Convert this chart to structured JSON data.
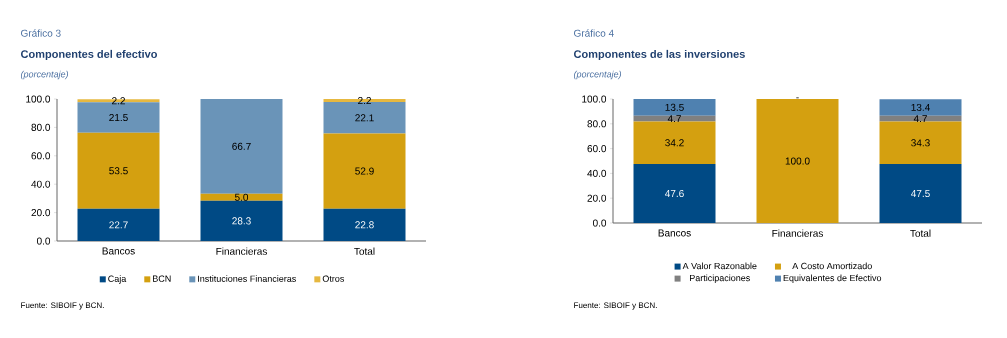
{
  "chart_data": [
    {
      "type": "bar",
      "stacked": true,
      "title": "Componentes del efectivo",
      "subtitle": "(porcentaje)",
      "annotations": [
        "Gráfico 3",
        "Fuente: SIBOIF y BCN."
      ],
      "categories": [
        "Bancos",
        "Financieras",
        "Total"
      ],
      "legend": "bottom",
      "ylim": [
        0,
        100
      ],
      "yticks": [
        {
          "value": 0,
          "label": "0.0"
        },
        {
          "value": 20,
          "label": "20.0"
        },
        {
          "value": 40,
          "label": "40.0"
        },
        {
          "value": 60,
          "label": "60.0"
        },
        {
          "value": 80,
          "label": "80.0"
        },
        {
          "value": 100,
          "label": "100.0"
        }
      ],
      "series": [
        {
          "name": "Caja",
          "color": "#004a85",
          "values": [
            22.7,
            28.3,
            22.8
          ],
          "value_labels": [
            "22.7",
            "28.3",
            "22.8"
          ]
        },
        {
          "name": "BCN",
          "color": "#d4a010",
          "values": [
            53.5,
            5.0,
            52.9
          ],
          "value_labels": [
            "53.5",
            "5.0",
            "52.9"
          ]
        },
        {
          "name": "Instituciones Financieras",
          "color": "#6a94b8",
          "values": [
            21.5,
            66.7,
            22.1
          ],
          "value_labels": [
            "21.5",
            "66.7",
            "22.1"
          ]
        },
        {
          "name": "Otros",
          "color": "#e6b840",
          "values": [
            2.2,
            0,
            2.2
          ],
          "value_labels": [
            "2.2",
            null,
            "2.2"
          ]
        }
      ]
    },
    {
      "type": "bar",
      "stacked": true,
      "title": "Componentes de las inversiones",
      "subtitle": "(porcentaje)",
      "annotations": [
        "Gráfico 4",
        "Fuente: SIBOIF y BCN."
      ],
      "categories": [
        "Bancos",
        "Financieras",
        "Total"
      ],
      "legend": "bottom",
      "ylim": [
        0,
        100
      ],
      "yticks": [
        {
          "value": 0,
          "label": "0.0"
        },
        {
          "value": 20,
          "label": "20.0"
        },
        {
          "value": 40,
          "label": "40.0"
        },
        {
          "value": 60,
          "label": "60.0"
        },
        {
          "value": 80,
          "label": "80.0"
        },
        {
          "value": 100,
          "label": "100.0"
        }
      ],
      "series": [
        {
          "name": "A Valor Razonable",
          "color": "#004a85",
          "values": [
            47.6,
            0,
            47.5
          ],
          "value_labels": [
            "47.6",
            null,
            "47.5"
          ]
        },
        {
          "name": "A Costo Amortizado",
          "color": "#d4a010",
          "values": [
            34.2,
            100.0,
            34.3
          ],
          "value_labels": [
            "34.2",
            "100.0",
            "34.3"
          ]
        },
        {
          "name": "Participaciones",
          "color": "#808080",
          "values": [
            4.7,
            0,
            4.7
          ],
          "value_labels": [
            "4.7",
            null,
            "4.7"
          ]
        },
        {
          "name": "Equivalentes de Efectivo",
          "color": "#4f81b0",
          "values": [
            13.5,
            0,
            13.4
          ],
          "value_labels": [
            "13.5",
            "-",
            "13.4"
          ]
        }
      ]
    }
  ]
}
